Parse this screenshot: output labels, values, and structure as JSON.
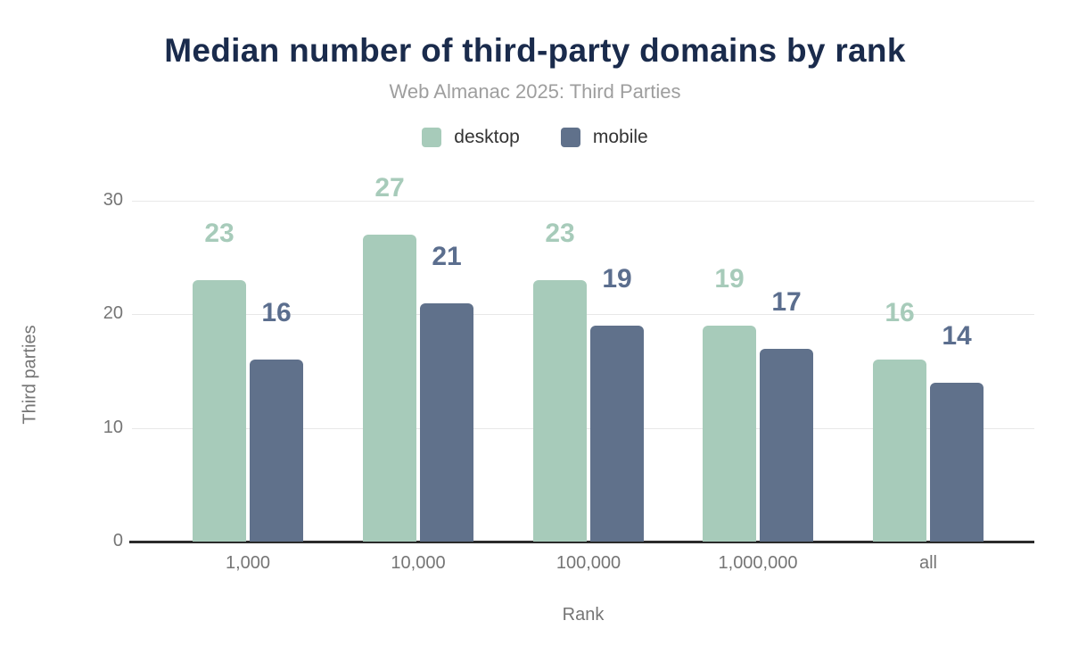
{
  "header": {
    "title": "Median number of third-party domains by rank",
    "subtitle": "Web Almanac 2025: Third Parties"
  },
  "chart_data": {
    "type": "bar",
    "title": "Median number of third-party domains by rank",
    "subtitle": "Web Almanac 2025: Third Parties",
    "categories": [
      "1,000",
      "10,000",
      "100,000",
      "1,000,000",
      "all"
    ],
    "series": [
      {
        "name": "desktop",
        "color": "#a7cbba",
        "label_color": "#a7cbba",
        "values": [
          23,
          27,
          23,
          19,
          16
        ]
      },
      {
        "name": "mobile",
        "color": "#60718b",
        "label_color": "#5b6e8e",
        "values": [
          16,
          21,
          19,
          17,
          14
        ]
      }
    ],
    "xlabel": "Rank",
    "ylabel": "Third parties",
    "yticks": [
      0,
      10,
      20,
      30
    ],
    "ylim": [
      0,
      30
    ],
    "grid": true,
    "legend_position": "top",
    "colors": {
      "title": "#1a2b4c",
      "subtitle": "#9e9e9e",
      "axis_text": "#757575",
      "legend_text": "#333333",
      "gridline": "#e8e8e8",
      "baseline": "#2b2b2b",
      "background": "#ffffff"
    }
  }
}
